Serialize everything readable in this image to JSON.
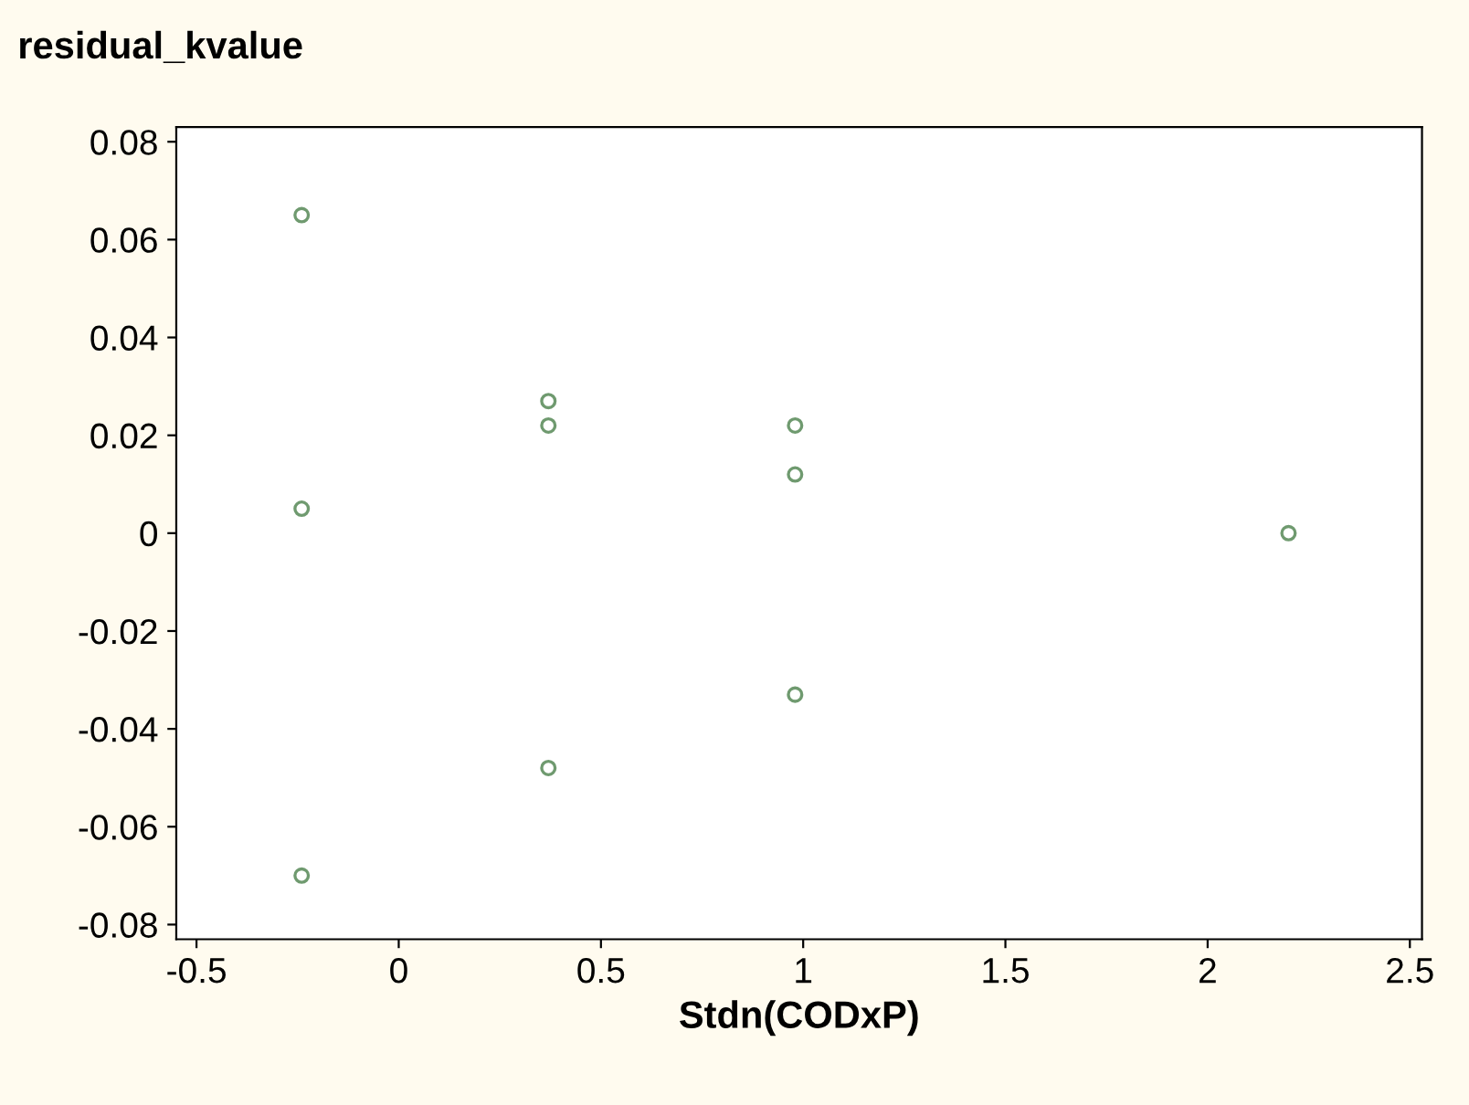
{
  "chart_data": {
    "type": "scatter",
    "ylabel": "residual_kvalue",
    "xlabel": "Stdn(CODxP)",
    "series": [
      {
        "color": "#6f9a6f",
        "x": [
          -0.24,
          -0.24,
          -0.24,
          0.37,
          0.37,
          0.37,
          0.98,
          0.98,
          0.98,
          2.2
        ],
        "values": [
          0.065,
          0.005,
          -0.07,
          0.027,
          0.022,
          -0.048,
          0.022,
          0.012,
          -0.033,
          0.0
        ]
      }
    ],
    "xlim": [
      -0.55,
      2.53
    ],
    "ylim": [
      -0.083,
      0.083
    ],
    "xticks": [
      -0.5,
      0,
      0.5,
      1,
      1.5,
      2,
      2.5
    ],
    "yticks": [
      -0.08,
      -0.06,
      -0.04,
      -0.02,
      0,
      0.02,
      0.04,
      0.06,
      0.08
    ],
    "marker": "circle",
    "grid": false,
    "legend": false
  }
}
